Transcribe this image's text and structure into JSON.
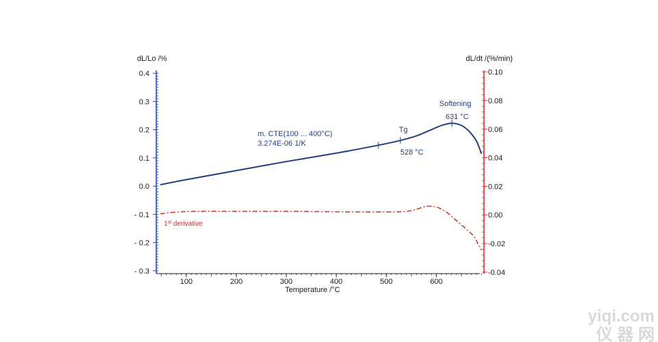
{
  "chart_data": {
    "type": "line",
    "xlabel": "Temperature /°C",
    "ylabel_left": "dL/Lo /%",
    "ylabel_right": "dL/dt /(%/min)",
    "xlim": [
      40,
      695
    ],
    "ylim_left": [
      -0.31,
      0.41
    ],
    "ylim_right": [
      -0.041,
      0.101
    ],
    "x_ticks": [
      100,
      200,
      300,
      400,
      500,
      600
    ],
    "y_ticks_left": [
      -0.3,
      -0.2,
      -0.1,
      0.0,
      0.1,
      0.2,
      0.3,
      0.4
    ],
    "y_ticks_left_labels": [
      "- 0.3",
      "- 0.2",
      "- 0.1",
      "0.0",
      "0.1",
      "0.2",
      "0.3",
      "0.4"
    ],
    "y_ticks_right": [
      -0.04,
      -0.02,
      0.0,
      0.02,
      0.04,
      0.06,
      0.08,
      0.1
    ],
    "y_ticks_right_labels": [
      "-0.04",
      "-0.02",
      "0.00",
      "0.02",
      "0.04",
      "0.06",
      "0.08",
      "0.10"
    ],
    "series": [
      {
        "color": "#1d3f8c",
        "axis": "left",
        "style": "solid",
        "x": [
          48,
          100,
          200,
          300,
          400,
          484,
          528,
          560,
          590,
          610,
          631,
          650,
          665,
          680,
          690
        ],
        "y": [
          0.005,
          0.023,
          0.055,
          0.087,
          0.117,
          0.145,
          0.162,
          0.178,
          0.2,
          0.215,
          0.223,
          0.215,
          0.195,
          0.16,
          0.115
        ]
      },
      {
        "name": "1st derivative",
        "color": "#e1261c",
        "axis": "right",
        "style": "dashdot",
        "x": [
          48,
          80,
          120,
          200,
          300,
          400,
          500,
          540,
          560,
          580,
          600,
          620,
          640,
          660,
          675,
          683,
          690
        ],
        "y": [
          0.0008,
          0.002,
          0.0025,
          0.0025,
          0.0025,
          0.0022,
          0.0021,
          0.0025,
          0.004,
          0.006,
          0.0055,
          0.002,
          -0.004,
          -0.01,
          -0.015,
          -0.02,
          -0.0245
        ]
      }
    ],
    "tick_markers": [
      {
        "x": 484,
        "y": 0.145
      },
      {
        "x": 528,
        "y": 0.162
      },
      {
        "x": 631,
        "y": 0.223
      }
    ],
    "annotations": {
      "cte_line1": "m. CTE(100 ... 400°C)",
      "cte_line2": "3.274E-06 1/K",
      "tg_label": "Tg",
      "tg_value": "528 °C",
      "softening_label": "Softening",
      "softening_value": "631 °C",
      "derivative_label_base": "1",
      "derivative_label_sup": "st",
      "derivative_label_rest": " derivative"
    },
    "watermark": "yiqi.com",
    "watermark_sub": "仪 器 网"
  }
}
